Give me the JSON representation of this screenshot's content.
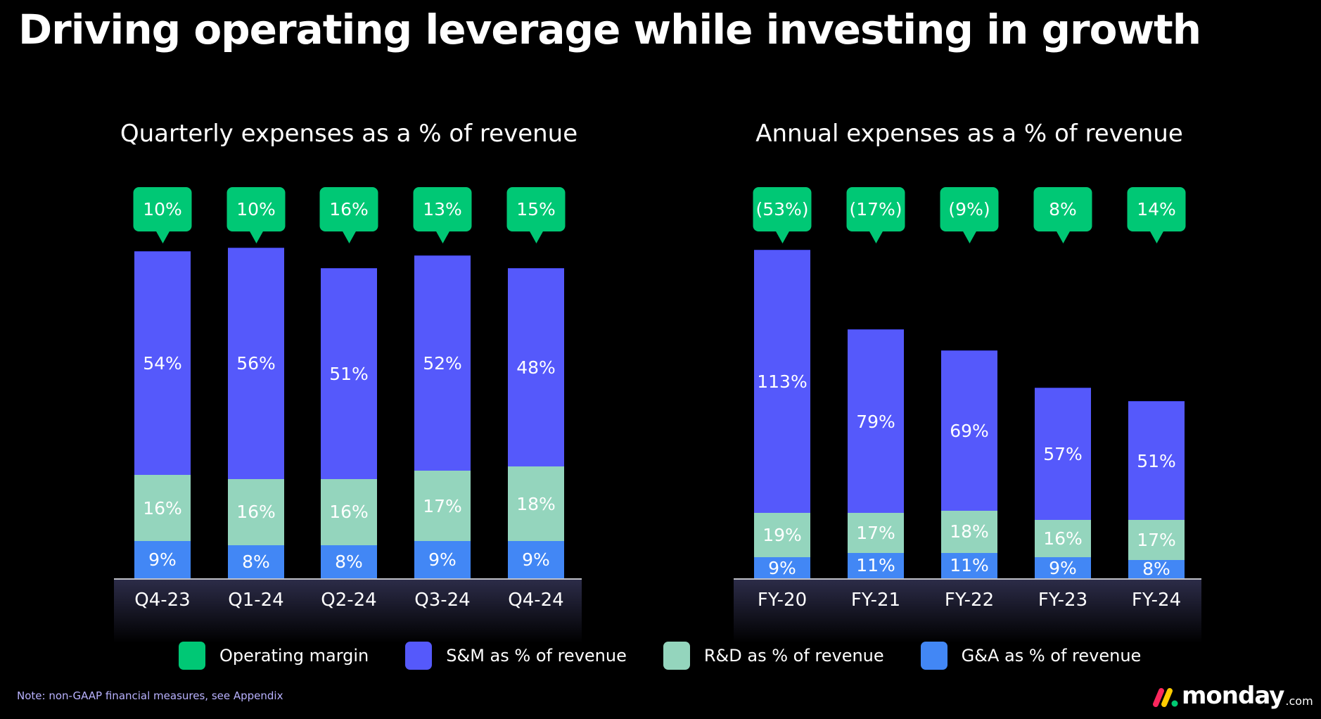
{
  "title": "Driving operating leverage while investing in growth",
  "colors": {
    "operating_margin": "#00c875",
    "sm": "#5559fb",
    "rd": "#94d5bd",
    "ga": "#4287f5"
  },
  "legend": [
    "Operating margin",
    "S&M as % of revenue",
    "R&D as % of revenue",
    "G&A as % of revenue"
  ],
  "note": "Note: non-GAAP financial measures, see Appendix",
  "logo": {
    "text": "monday",
    "suffix": ".com"
  },
  "chart_data": [
    {
      "type": "bar",
      "stacked": true,
      "title": "Quarterly expenses as a % of revenue",
      "categories": [
        "Q4-23",
        "Q1-24",
        "Q2-24",
        "Q3-24",
        "Q4-24"
      ],
      "series": [
        {
          "name": "G&A as % of revenue",
          "values": [
            9,
            8,
            8,
            9,
            9
          ],
          "labels": [
            "9%",
            "8%",
            "8%",
            "9%",
            "9%"
          ]
        },
        {
          "name": "R&D as % of revenue",
          "values": [
            16,
            16,
            16,
            17,
            18
          ],
          "labels": [
            "16%",
            "16%",
            "16%",
            "17%",
            "18%"
          ]
        },
        {
          "name": "S&M as % of revenue",
          "values": [
            54,
            56,
            51,
            52,
            48
          ],
          "labels": [
            "54%",
            "56%",
            "51%",
            "52%",
            "48%"
          ]
        }
      ],
      "operating_margin": {
        "values": [
          10,
          10,
          16,
          13,
          15
        ],
        "labels": [
          "10%",
          "10%",
          "16%",
          "13%",
          "15%"
        ]
      },
      "legend": "bottom"
    },
    {
      "type": "bar",
      "stacked": true,
      "title": "Annual expenses as a % of revenue",
      "categories": [
        "FY-20",
        "FY-21",
        "FY-22",
        "FY-23",
        "FY-24"
      ],
      "series": [
        {
          "name": "G&A as % of revenue",
          "values": [
            9,
            11,
            11,
            9,
            8
          ],
          "labels": [
            "9%",
            "11%",
            "11%",
            "9%",
            "8%"
          ]
        },
        {
          "name": "R&D as % of revenue",
          "values": [
            19,
            17,
            18,
            16,
            17
          ],
          "labels": [
            "19%",
            "17%",
            "18%",
            "16%",
            "17%"
          ]
        },
        {
          "name": "S&M as % of revenue",
          "values": [
            113,
            79,
            69,
            57,
            51
          ],
          "labels": [
            "113%",
            "79%",
            "69%",
            "57%",
            "51%"
          ]
        }
      ],
      "operating_margin": {
        "values": [
          -53,
          -17,
          -9,
          8,
          14
        ],
        "labels": [
          "(53%)",
          "(17%)",
          "(9%)",
          "8%",
          "14%"
        ]
      },
      "legend": "bottom"
    }
  ]
}
